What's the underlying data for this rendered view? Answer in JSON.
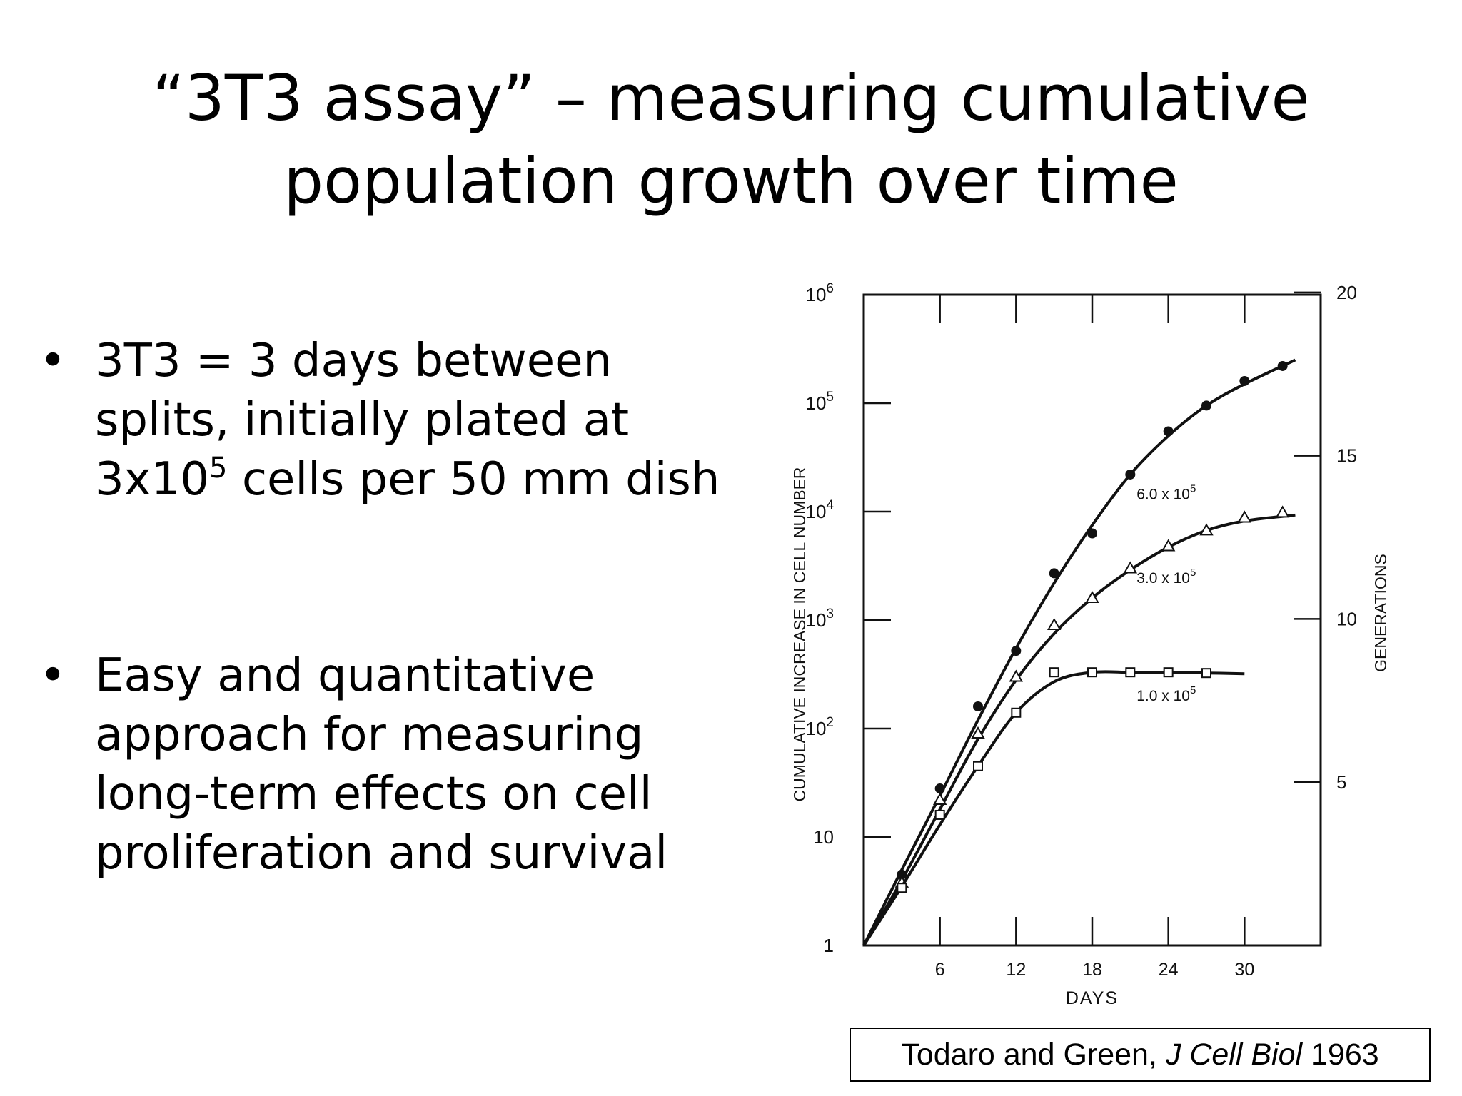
{
  "slide": {
    "title_line1": "“3T3 assay” – measuring cumulative",
    "title_line2": "population growth over time"
  },
  "bullets": [
    {
      "symbol": "•",
      "line1": "3T3 = 3 days between",
      "line2": "splits, initially plated at",
      "line3_pre": "3x10",
      "line3_sup": "5",
      "line3_post": " cells per 50 mm dish"
    },
    {
      "symbol": "•",
      "line1": "Easy and quantitative",
      "line2": "approach for measuring",
      "line3": "long-term effects on cell",
      "line4": "proliferation and survival"
    }
  ],
  "chart_data": {
    "type": "line",
    "xlabel": "DAYS",
    "ylabel": "CUMULATIVE INCREASE IN CELL NUMBER",
    "y2label": "GENERATIONS",
    "x_scale": "linear",
    "y_scale": "log",
    "xlim": [
      0,
      36
    ],
    "ylim": [
      1,
      1000000
    ],
    "x_ticks": [
      "6",
      "12",
      "18",
      "24",
      "30"
    ],
    "y_ticks": [
      {
        "base": "1",
        "exp": ""
      },
      {
        "base": "10",
        "exp": ""
      },
      {
        "base": "10",
        "exp": "2"
      },
      {
        "base": "10",
        "exp": "3"
      },
      {
        "base": "10",
        "exp": "4"
      },
      {
        "base": "10",
        "exp": "5"
      },
      {
        "base": "10",
        "exp": "6"
      }
    ],
    "y2_ticks": [
      "5",
      "10",
      "15",
      "20"
    ],
    "grid": false,
    "series": [
      {
        "name": "6.0 x 10^5",
        "label_base": "6.0 x 10",
        "label_exp": "5",
        "marker": "filled-circle",
        "points": [
          [
            3,
            4.5
          ],
          [
            6,
            28
          ],
          [
            9,
            160
          ],
          [
            12,
            520
          ],
          [
            15,
            2700
          ],
          [
            18,
            6300
          ],
          [
            21,
            22000
          ],
          [
            24,
            55000
          ],
          [
            27,
            95000
          ],
          [
            30,
            160000
          ],
          [
            33,
            220000
          ]
        ],
        "curve": [
          [
            0,
            1
          ],
          [
            3,
            5
          ],
          [
            6,
            24
          ],
          [
            9,
            120
          ],
          [
            12,
            550
          ],
          [
            15,
            2200
          ],
          [
            18,
            7500
          ],
          [
            21,
            22000
          ],
          [
            24,
            50000
          ],
          [
            27,
            95000
          ],
          [
            30,
            150000
          ],
          [
            34,
            250000
          ]
        ]
      },
      {
        "name": "3.0 x 10^5",
        "label_base": "3.0 x 10",
        "label_exp": "5",
        "marker": "open-triangle",
        "points": [
          [
            3,
            3.8
          ],
          [
            6,
            22
          ],
          [
            9,
            90
          ],
          [
            12,
            300
          ],
          [
            15,
            900
          ],
          [
            18,
            1600
          ],
          [
            21,
            3000
          ],
          [
            24,
            4800
          ],
          [
            27,
            6700
          ],
          [
            30,
            8800
          ],
          [
            33,
            9800
          ]
        ],
        "curve": [
          [
            0,
            1
          ],
          [
            3,
            4
          ],
          [
            6,
            18
          ],
          [
            9,
            80
          ],
          [
            12,
            280
          ],
          [
            15,
            750
          ],
          [
            18,
            1600
          ],
          [
            21,
            2900
          ],
          [
            24,
            4700
          ],
          [
            27,
            6700
          ],
          [
            30,
            8200
          ],
          [
            34,
            9300
          ]
        ]
      },
      {
        "name": "1.0 x 10^5",
        "label_base": "1.0 x 10",
        "label_exp": "5",
        "marker": "open-square",
        "points": [
          [
            3,
            3.4
          ],
          [
            6,
            16
          ],
          [
            9,
            45
          ],
          [
            12,
            140
          ],
          [
            15,
            330
          ],
          [
            18,
            330
          ],
          [
            21,
            330
          ],
          [
            24,
            330
          ],
          [
            27,
            325
          ]
        ],
        "curve": [
          [
            0,
            1
          ],
          [
            3,
            3.5
          ],
          [
            6,
            13
          ],
          [
            9,
            45
          ],
          [
            12,
            140
          ],
          [
            15,
            270
          ],
          [
            18,
            330
          ],
          [
            21,
            330
          ],
          [
            24,
            330
          ],
          [
            27,
            325
          ],
          [
            30,
            320
          ]
        ]
      }
    ]
  },
  "citation": {
    "authors": "Todaro and Green, ",
    "journal": "J Cell Biol",
    "year": " 1963"
  }
}
